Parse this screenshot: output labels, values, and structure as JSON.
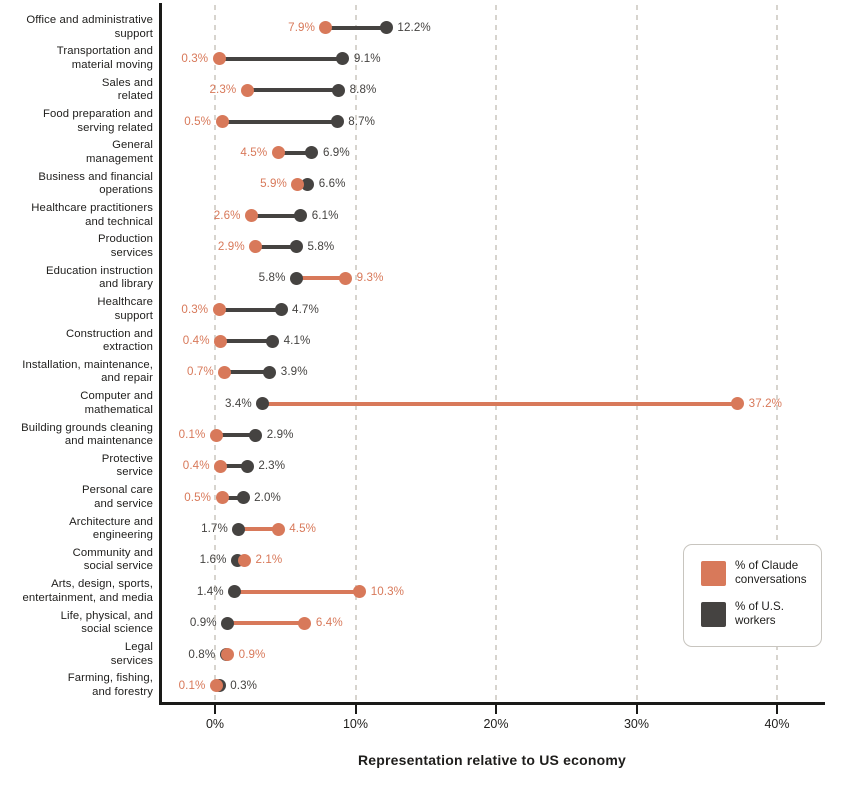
{
  "figure": {
    "xlabel": "Representation relative to US economy",
    "background": "#ffffff"
  },
  "colors": {
    "claude": "#D8795A",
    "workers": "#454341",
    "grid": "#D7D4CE",
    "axis": "#1A1A18",
    "text": "#1E1D1B",
    "legend_border": "#C8C5BF"
  },
  "legend": {
    "items": [
      {
        "series": "claude",
        "lines": [
          "% of Claude",
          "conversations"
        ],
        "color": "#D8795A"
      },
      {
        "series": "workers",
        "lines": [
          "% of U.S.",
          "workers"
        ],
        "color": "#454341"
      }
    ]
  },
  "chart_data": {
    "type": "scatter",
    "variant": "dumbbell",
    "title": "",
    "xlabel": "Representation relative to US economy",
    "ylabel": "",
    "xlim": [
      -4,
      43.5
    ],
    "grid": "vertical-dashed",
    "legend_position": "right-lower",
    "x_ticks": [
      {
        "value": 0,
        "label": "0%"
      },
      {
        "value": 10,
        "label": "10%"
      },
      {
        "value": 20,
        "label": "20%"
      },
      {
        "value": 30,
        "label": "30%"
      },
      {
        "value": 40,
        "label": "40%"
      }
    ],
    "series_names": [
      "% of Claude conversations",
      "% of U.S. workers"
    ],
    "rows": [
      {
        "category": "Office and administrative support",
        "label_lines": [
          "Office and administrative",
          "support"
        ],
        "claude": 7.9,
        "claude_label": "7.9%",
        "workers": 12.2,
        "workers_label": "12.2%"
      },
      {
        "category": "Transportation and material moving",
        "label_lines": [
          "Transportation and",
          "material moving"
        ],
        "claude": 0.3,
        "claude_label": "0.3%",
        "workers": 9.1,
        "workers_label": "9.1%"
      },
      {
        "category": "Sales and related",
        "label_lines": [
          "Sales and",
          "related"
        ],
        "claude": 2.3,
        "claude_label": "2.3%",
        "workers": 8.8,
        "workers_label": "8.8%"
      },
      {
        "category": "Food preparation and serving related",
        "label_lines": [
          "Food preparation and",
          "serving related"
        ],
        "claude": 0.5,
        "claude_label": "0.5%",
        "workers": 8.7,
        "workers_label": "8.7%"
      },
      {
        "category": "General management",
        "label_lines": [
          "General",
          "management"
        ],
        "claude": 4.5,
        "claude_label": "4.5%",
        "workers": 6.9,
        "workers_label": "6.9%"
      },
      {
        "category": "Business and financial operations",
        "label_lines": [
          "Business and financial",
          "operations"
        ],
        "claude": 5.9,
        "claude_label": "5.9%",
        "workers": 6.6,
        "workers_label": "6.6%"
      },
      {
        "category": "Healthcare practitioners and technical",
        "label_lines": [
          "Healthcare practitioners",
          "and technical"
        ],
        "claude": 2.6,
        "claude_label": "2.6%",
        "workers": 6.1,
        "workers_label": "6.1%"
      },
      {
        "category": "Production services",
        "label_lines": [
          "Production",
          "services"
        ],
        "claude": 2.9,
        "claude_label": "2.9%",
        "workers": 5.8,
        "workers_label": "5.8%"
      },
      {
        "category": "Education instruction and library",
        "label_lines": [
          "Education instruction",
          "and library"
        ],
        "claude": 9.3,
        "claude_label": "9.3%",
        "workers": 5.8,
        "workers_label": "5.8%"
      },
      {
        "category": "Healthcare support",
        "label_lines": [
          "Healthcare",
          "support"
        ],
        "claude": 0.3,
        "claude_label": "0.3%",
        "workers": 4.7,
        "workers_label": "4.7%"
      },
      {
        "category": "Construction and extraction",
        "label_lines": [
          "Construction and",
          "extraction"
        ],
        "claude": 0.4,
        "claude_label": "0.4%",
        "workers": 4.1,
        "workers_label": "4.1%"
      },
      {
        "category": "Installation, maintenance, and repair",
        "label_lines": [
          "Installation, maintenance,",
          "and repair"
        ],
        "claude": 0.7,
        "claude_label": "0.7%",
        "workers": 3.9,
        "workers_label": "3.9%"
      },
      {
        "category": "Computer and mathematical",
        "label_lines": [
          "Computer and",
          "mathematical"
        ],
        "claude": 37.2,
        "claude_label": "37.2%",
        "workers": 3.4,
        "workers_label": "3.4%"
      },
      {
        "category": "Building grounds cleaning and maintenance",
        "label_lines": [
          "Building grounds cleaning",
          "and maintenance"
        ],
        "claude": 0.1,
        "claude_label": "0.1%",
        "workers": 2.9,
        "workers_label": "2.9%"
      },
      {
        "category": "Protective service",
        "label_lines": [
          "Protective",
          "service"
        ],
        "claude": 0.4,
        "claude_label": "0.4%",
        "workers": 2.3,
        "workers_label": "2.3%"
      },
      {
        "category": "Personal care and service",
        "label_lines": [
          "Personal care",
          "and service"
        ],
        "claude": 0.5,
        "claude_label": "0.5%",
        "workers": 2.0,
        "workers_label": "2.0%"
      },
      {
        "category": "Architecture and engineering",
        "label_lines": [
          "Architecture and",
          "engineering"
        ],
        "claude": 4.5,
        "claude_label": "4.5%",
        "workers": 1.7,
        "workers_label": "1.7%"
      },
      {
        "category": "Community and social service",
        "label_lines": [
          "Community and",
          "social service"
        ],
        "claude": 2.1,
        "claude_label": "2.1%",
        "workers": 1.6,
        "workers_label": "1.6%"
      },
      {
        "category": "Arts, design, sports, entertainment, and media",
        "label_lines": [
          "Arts, design, sports,",
          "entertainment, and media"
        ],
        "claude": 10.3,
        "claude_label": "10.3%",
        "workers": 1.4,
        "workers_label": "1.4%"
      },
      {
        "category": "Life, physical, and social science",
        "label_lines": [
          "Life, physical, and",
          "social science"
        ],
        "claude": 6.4,
        "claude_label": "6.4%",
        "workers": 0.9,
        "workers_label": "0.9%"
      },
      {
        "category": "Legal services",
        "label_lines": [
          "Legal",
          "services"
        ],
        "claude": 0.9,
        "claude_label": "0.9%",
        "workers": 0.8,
        "workers_label": "0.8%"
      },
      {
        "category": "Farming, fishing, and forestry",
        "label_lines": [
          "Farming, fishing,",
          "and forestry"
        ],
        "claude": 0.1,
        "claude_label": "0.1%",
        "workers": 0.3,
        "workers_label": "0.3%"
      }
    ]
  }
}
